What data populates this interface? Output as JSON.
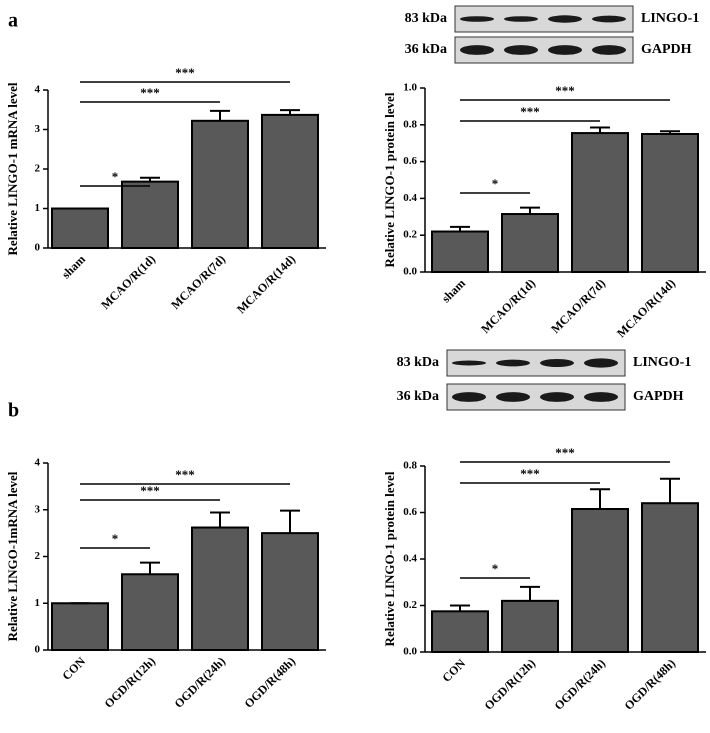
{
  "chart_data": [
    {
      "type": "bar",
      "panel_label": "a",
      "y_label": "Relative LINGO-1 mRNA level",
      "categories": [
        "sham",
        "MCAO/R(1d)",
        "MCAO/R(7d)",
        "MCAO/R(14d)"
      ],
      "values": [
        1.0,
        1.68,
        3.22,
        3.37
      ],
      "errors": [
        0,
        0.1,
        0.25,
        0.12
      ],
      "color": "#595959",
      "ylim": [
        0,
        4
      ],
      "yticks": [
        0,
        1,
        2,
        3,
        4
      ],
      "annotations": [
        {
          "text": "*",
          "from": "sham",
          "to": "MCAO/R(1d)"
        },
        {
          "text": "***",
          "from": "sham",
          "to": "MCAO/R(7d)"
        },
        {
          "text": "***",
          "from": "sham",
          "to": "MCAO/R(14d)"
        }
      ]
    },
    {
      "type": "bar",
      "y_label": "Relative LINGO-1 protein level",
      "blot": [
        {
          "size": "83 kDa",
          "protein": "LINGO-1"
        },
        {
          "size": "36 kDa",
          "protein": "GAPDH"
        }
      ],
      "categories": [
        "sham",
        "MCAO/R(1d)",
        "MCAO/R(7d)",
        "MCAO/R(14d)"
      ],
      "values": [
        0.22,
        0.315,
        0.755,
        0.75
      ],
      "errors": [
        0.025,
        0.035,
        0.03,
        0.015
      ],
      "color": "#595959",
      "ylim": [
        0,
        1
      ],
      "yticks": [
        {
          "value": 0,
          "label": "0.0"
        },
        0.2,
        0.4,
        0.6,
        0.8,
        {
          "value": 1,
          "label": "1.0"
        }
      ],
      "annotations": [
        {
          "text": "*",
          "from": "sham",
          "to": "MCAO/R(1d)"
        },
        {
          "text": "***",
          "from": "sham",
          "to": "MCAO/R(7d)"
        },
        {
          "text": "***",
          "from": "sham",
          "to": "MCAO/R(14d)"
        }
      ]
    },
    {
      "type": "bar",
      "panel_label": "b",
      "y_label": "Relative LINGO-1mRNA level",
      "categories": [
        "CON",
        "OGD/R(12h)",
        "OGD/R(24h)",
        "OGD/R(48h)"
      ],
      "values": [
        1.0,
        1.62,
        2.62,
        2.5
      ],
      "errors": [
        0,
        0.25,
        0.32,
        0.48
      ],
      "color": "#595959",
      "ylim": [
        0,
        4
      ],
      "yticks": [
        0,
        1,
        2,
        3,
        4
      ],
      "annotations": [
        {
          "text": "*",
          "from": "CON",
          "to": "OGD/R(12h)"
        },
        {
          "text": "***",
          "from": "CON",
          "to": "OGD/R(24h)"
        },
        {
          "text": "***",
          "from": "CON",
          "to": "OGD/R(48h)"
        }
      ]
    },
    {
      "type": "bar",
      "y_label": "Relative LINGO-1 protein level",
      "blot": [
        {
          "size": "83 kDa",
          "protein": "LINGO-1"
        },
        {
          "size": "36 kDa",
          "protein": "GAPDH"
        }
      ],
      "categories": [
        "CON",
        "OGD/R(12h)",
        "OGD/R(24h)",
        "OGD/R(48h)"
      ],
      "values": [
        0.175,
        0.22,
        0.615,
        0.64
      ],
      "errors": [
        0.025,
        0.06,
        0.085,
        0.105
      ],
      "color": "#595959",
      "ylim": [
        0,
        0.8
      ],
      "yticks": [
        {
          "value": 0,
          "label": "0.0"
        },
        0.2,
        0.4,
        0.6,
        0.8
      ],
      "annotations": [
        {
          "text": "*",
          "from": "CON",
          "to": "OGD/R(12h)"
        },
        {
          "text": "***",
          "from": "CON",
          "to": "OGD/R(24h)"
        },
        {
          "text": "***",
          "from": "CON",
          "to": "OGD/R(48h)"
        }
      ]
    }
  ]
}
